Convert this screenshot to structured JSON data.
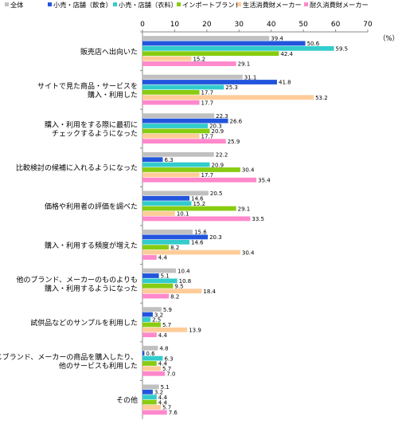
{
  "chart_data": {
    "type": "bar",
    "orientation": "horizontal",
    "unit_label": "（%）",
    "xlim": [
      0,
      70
    ],
    "xticks": [
      0,
      10,
      20,
      30,
      40,
      50,
      60,
      70
    ],
    "grid": false,
    "legend_position": "top",
    "categories": [
      "販売店へ出向いた",
      "サイトで見た商品・サービスを\n購入・利用した",
      "購入・利用をする際に最初に\nチェックするようになった",
      "比較検討の候補に入れるようになった",
      "価格や利用者の評価を調べた",
      "購入・利用する頻度が増えた",
      "他のブランド、メーカーのものよりも\n購入・利用するようになった",
      "試供品などのサンプルを利用した",
      "同じブランド、メーカーの商品を購入したり、\n他のサービスも利用した",
      "その他"
    ],
    "series": [
      {
        "name": "全体",
        "color": "#c0c0c0",
        "values": [
          39.4,
          31.1,
          22.3,
          22.2,
          20.5,
          15.6,
          10.4,
          5.9,
          4.8,
          5.1
        ]
      },
      {
        "name": "小売・店舗（飲食）",
        "color": "#2255dd",
        "values": [
          50.6,
          41.8,
          26.6,
          6.3,
          14.6,
          20.3,
          5.1,
          3.2,
          0.6,
          3.2
        ]
      },
      {
        "name": "小売・店舗（衣料）",
        "color": "#33cccc",
        "values": [
          59.5,
          25.3,
          20.3,
          20.9,
          15.2,
          14.6,
          10.8,
          2.5,
          6.3,
          4.4
        ]
      },
      {
        "name": "インポートブランド",
        "color": "#88cc11",
        "values": [
          42.4,
          17.7,
          20.9,
          30.4,
          29.1,
          8.2,
          9.5,
          5.7,
          4.4,
          4.4
        ]
      },
      {
        "name": "生活消費財メーカー",
        "color": "#ffcc99",
        "values": [
          15.2,
          53.2,
          17.7,
          17.7,
          10.1,
          30.4,
          18.4,
          13.9,
          5.7,
          5.7
        ]
      },
      {
        "name": "耐久消費財メーカー",
        "color": "#ff88cc",
        "values": [
          29.1,
          17.7,
          25.9,
          35.4,
          33.5,
          4.4,
          8.2,
          4.4,
          7.0,
          7.6
        ]
      }
    ]
  }
}
